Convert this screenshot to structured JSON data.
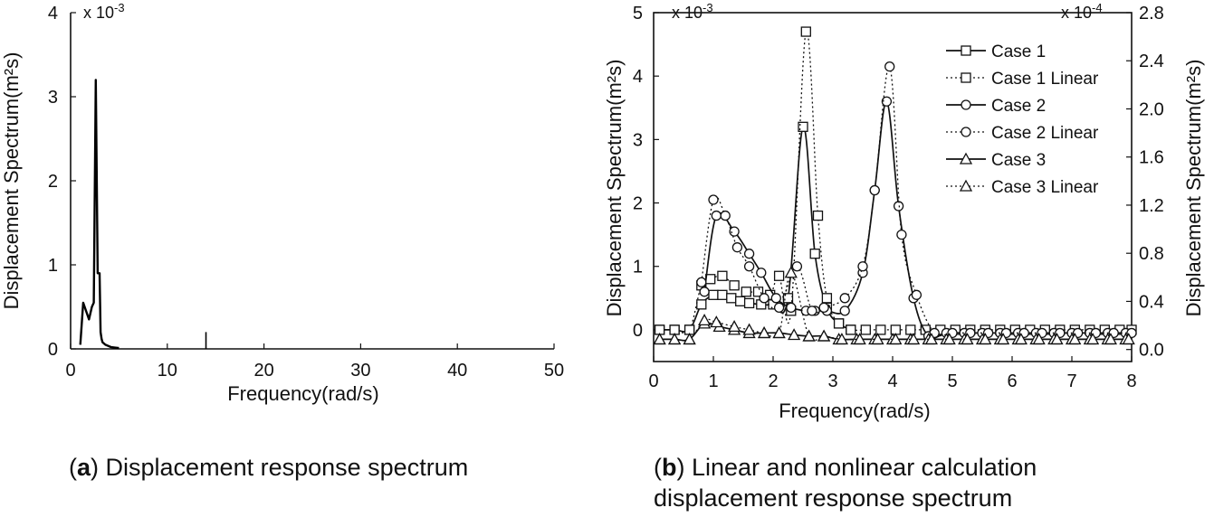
{
  "captions": {
    "a": {
      "letter": "a",
      "text": ") Displacement response spectrum"
    },
    "b": {
      "letter": "b",
      "line1": ") Linear and nonlinear calculation",
      "line2": "displacement response spectrum"
    }
  },
  "chart_data": [
    {
      "id": "a",
      "type": "line",
      "title": "",
      "xlabel": "Frequency(rad/s)",
      "ylabel": "Displacement Spectrum(m²s)",
      "multiplier": "x 10",
      "multiplier_exp": "-3",
      "xlim": [
        0,
        50
      ],
      "ylim": [
        0,
        4
      ],
      "xticks": [
        0,
        10,
        20,
        30,
        40,
        50
      ],
      "yticks": [
        0,
        1,
        2,
        3,
        4
      ],
      "color": "#000000",
      "series": [
        {
          "x": [
            1.0,
            1.3,
            1.6,
            1.9,
            2.2,
            2.4,
            2.6,
            2.8,
            3.0,
            3.1,
            3.2,
            3.3,
            3.6,
            4.2,
            5.0
          ],
          "y": [
            0.05,
            0.55,
            0.45,
            0.35,
            0.5,
            0.55,
            3.2,
            0.9,
            0.9,
            0.2,
            0.12,
            0.08,
            0.05,
            0.02,
            0.01
          ]
        }
      ],
      "annotations": [
        {
          "x": 14,
          "y": 0.2
        }
      ]
    },
    {
      "id": "b",
      "type": "line",
      "title": "",
      "xlabel": "Frequency(rad/s)",
      "ylabel_left": "Displacement Spectrum(m²s)",
      "ylabel_right": "Displacement Spectrum(m²s)",
      "multiplier_left": "x 10",
      "multiplier_left_exp": "-3",
      "multiplier_right": "x 10",
      "multiplier_right_exp": "-4",
      "xlim": [
        0,
        8
      ],
      "ylim_left": [
        -0.5,
        5
      ],
      "ylim_right": [
        -0.1,
        2.8
      ],
      "xticks": [
        0,
        1,
        2,
        3,
        4,
        5,
        6,
        7,
        8
      ],
      "yticks_left": [
        0,
        1,
        2,
        3,
        4,
        5
      ],
      "yticks_right": [
        0.0,
        0.4,
        0.8,
        1.2,
        1.6,
        2.0,
        2.4,
        2.8
      ],
      "yticks_right_labels": [
        "0.0",
        "0.4",
        "0.8",
        "1.2",
        "1.6",
        "2.0",
        "2.4",
        "2.8"
      ],
      "legend_position": "top-right",
      "series": [
        {
          "name": "Case 1",
          "style": "solid",
          "marker": "square",
          "x": [
            0.1,
            0.35,
            0.6,
            0.8,
            1.0,
            1.15,
            1.3,
            1.45,
            1.6,
            1.8,
            2.0,
            2.25,
            2.5,
            2.7,
            2.9,
            3.1,
            3.3
          ],
          "y": [
            0.0,
            0.0,
            0.0,
            0.4,
            0.55,
            0.55,
            0.5,
            0.45,
            0.42,
            0.4,
            0.4,
            0.5,
            3.2,
            1.2,
            0.35,
            0.1,
            0.0
          ]
        },
        {
          "name": "Case 1 Linear",
          "style": "dotted",
          "marker": "square",
          "x": [
            0.1,
            0.35,
            0.6,
            0.8,
            0.95,
            1.15,
            1.35,
            1.55,
            1.75,
            1.95,
            2.1,
            2.3,
            2.55,
            2.75,
            2.9,
            3.1,
            3.3,
            3.55,
            3.8,
            4.05,
            4.3,
            4.55,
            4.8,
            5.05,
            5.3,
            5.55,
            5.8,
            6.05,
            6.3,
            6.55,
            6.8,
            7.05,
            7.3,
            7.55,
            7.8,
            8.0
          ],
          "y": [
            0.0,
            0.0,
            0.0,
            0.7,
            0.8,
            0.85,
            0.7,
            0.6,
            0.6,
            0.55,
            0.85,
            0.3,
            4.7,
            1.8,
            0.5,
            0.1,
            0.0,
            0.0,
            0.0,
            0.0,
            0.0,
            0.0,
            0.0,
            0.0,
            0.0,
            0.0,
            0.0,
            0.0,
            0.0,
            0.0,
            0.0,
            0.0,
            0.0,
            0.0,
            0.0,
            0.0
          ]
        },
        {
          "name": "Case 2",
          "style": "solid",
          "marker": "circle",
          "x": [
            0.85,
            1.05,
            1.35,
            1.6,
            1.8,
            2.05,
            2.3,
            2.55,
            2.7,
            2.9,
            3.2,
            3.5,
            3.7,
            3.9,
            4.1,
            4.35,
            4.6,
            4.9,
            5.2,
            5.5,
            5.8,
            6.1,
            6.4,
            6.7,
            7.0,
            7.3,
            7.6,
            7.9
          ],
          "y": [
            0.6,
            1.8,
            1.55,
            1.2,
            0.9,
            0.5,
            0.35,
            0.3,
            0.3,
            0.3,
            0.3,
            0.9,
            2.2,
            3.6,
            1.95,
            0.5,
            -0.1,
            -0.05,
            -0.05,
            -0.05,
            -0.05,
            -0.05,
            -0.05,
            -0.05,
            -0.05,
            -0.05,
            -0.05,
            -0.05
          ]
        },
        {
          "name": "Case 2 Linear",
          "style": "dotted",
          "marker": "circle",
          "x": [
            0.8,
            1.0,
            1.2,
            1.4,
            1.6,
            1.85,
            2.1,
            2.4,
            2.65,
            2.85,
            3.2,
            3.5,
            3.7,
            3.95,
            4.15,
            4.4,
            4.7,
            5.0,
            5.3,
            5.6,
            5.9,
            6.2,
            6.5,
            6.8,
            7.1,
            7.4,
            7.7,
            8.0
          ],
          "y": [
            0.75,
            2.05,
            1.8,
            1.3,
            1.0,
            0.5,
            0.35,
            1.0,
            0.3,
            0.35,
            0.5,
            1.0,
            2.2,
            4.15,
            1.5,
            0.55,
            -0.05,
            -0.05,
            -0.05,
            -0.05,
            -0.05,
            -0.05,
            -0.05,
            -0.05,
            -0.05,
            -0.05,
            -0.05,
            -0.05
          ]
        },
        {
          "name": "Case 3",
          "style": "solid",
          "marker": "triangle",
          "x": [
            0.1,
            0.35,
            0.6,
            0.85,
            1.1,
            1.35,
            1.6,
            1.85,
            2.1,
            2.35,
            2.6,
            2.85,
            3.1,
            3.4,
            3.7,
            4.0,
            4.3,
            4.6,
            4.9,
            5.2,
            5.5,
            5.8,
            6.1,
            6.4,
            6.7,
            7.0,
            7.3,
            7.6,
            7.9
          ],
          "y": [
            -0.15,
            -0.15,
            -0.15,
            0.1,
            0.05,
            0.0,
            -0.05,
            -0.05,
            -0.05,
            -0.08,
            -0.1,
            -0.1,
            -0.15,
            -0.15,
            -0.15,
            -0.15,
            -0.15,
            -0.15,
            -0.15,
            -0.15,
            -0.15,
            -0.15,
            -0.15,
            -0.15,
            -0.15,
            -0.15,
            -0.15,
            -0.15,
            -0.15
          ]
        },
        {
          "name": "Case 3 Linear",
          "style": "dotted",
          "marker": "triangle",
          "x": [
            0.1,
            0.35,
            0.6,
            0.85,
            1.05,
            1.35,
            1.6,
            1.85,
            2.1,
            2.3,
            2.6,
            2.85,
            3.15,
            3.45,
            3.75,
            4.05,
            4.35,
            4.65,
            4.95,
            5.25,
            5.55,
            5.85,
            6.15,
            6.45,
            6.75,
            7.05,
            7.35,
            7.65,
            7.95
          ],
          "y": [
            -0.15,
            -0.15,
            -0.15,
            0.15,
            0.12,
            0.05,
            0.0,
            -0.05,
            -0.05,
            0.9,
            -0.1,
            -0.1,
            -0.15,
            -0.15,
            -0.15,
            -0.15,
            -0.15,
            -0.15,
            -0.15,
            -0.15,
            -0.15,
            -0.15,
            -0.15,
            -0.15,
            -0.15,
            -0.15,
            -0.15,
            -0.15,
            -0.15
          ]
        }
      ]
    }
  ]
}
